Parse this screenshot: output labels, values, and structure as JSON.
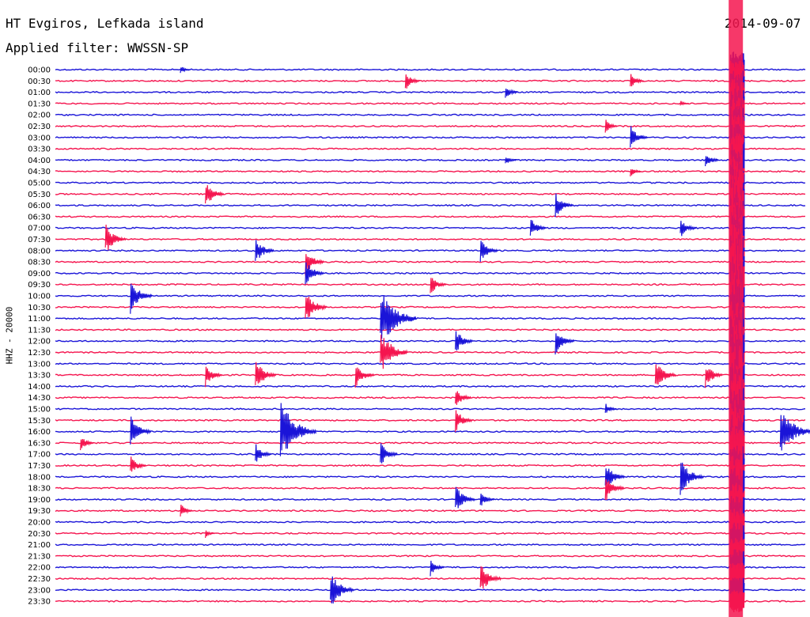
{
  "header": {
    "station": "HT Evgiros, Lefkada island",
    "date": "2014-09-07",
    "filter": "Applied filter: WWSSN-SP",
    "channel_label": "HHZ - 20000"
  },
  "colors": {
    "trace_even": "#1a14d8",
    "trace_odd": "#f5154f",
    "background": "#ffffff"
  },
  "chart_data": {
    "type": "line",
    "subtype": "helicorder",
    "title": "HT Evgiros, Lefkada island",
    "subtitle": "Applied filter: WWSSN-SP",
    "ylabel": "HHZ - 20000",
    "y_tick_labels": [
      "00:00",
      "00:30",
      "01:00",
      "01:30",
      "02:00",
      "02:30",
      "03:00",
      "03:30",
      "04:00",
      "04:30",
      "05:00",
      "05:30",
      "06:00",
      "06:30",
      "07:00",
      "07:30",
      "08:00",
      "08:30",
      "09:00",
      "09:30",
      "10:00",
      "10:30",
      "11:00",
      "11:30",
      "12:00",
      "12:30",
      "13:00",
      "13:30",
      "14:00",
      "14:30",
      "15:00",
      "15:30",
      "16:00",
      "16:30",
      "17:00",
      "17:30",
      "18:00",
      "18:30",
      "19:00",
      "19:30",
      "20:00",
      "20:30",
      "21:00",
      "21:30",
      "22:00",
      "22:30",
      "23:00",
      "23:30"
    ],
    "minutes_per_line": 30,
    "grid": false,
    "series": [
      {
        "colors_alternate": [
          "blue",
          "red"
        ],
        "events": [
          {
            "line": 0,
            "minute": 5,
            "amp": 0.4
          },
          {
            "line": 1,
            "minute": 14,
            "amp": 0.9
          },
          {
            "line": 1,
            "minute": 23,
            "amp": 0.8
          },
          {
            "line": 2,
            "minute": 18,
            "amp": 0.7
          },
          {
            "line": 3,
            "minute": 25,
            "amp": 0.3
          },
          {
            "line": 5,
            "minute": 22,
            "amp": 0.7
          },
          {
            "line": 6,
            "minute": 23,
            "amp": 1.2
          },
          {
            "line": 8,
            "minute": 18,
            "amp": 0.5
          },
          {
            "line": 8,
            "minute": 26,
            "amp": 0.8
          },
          {
            "line": 9,
            "minute": 23,
            "amp": 0.5
          },
          {
            "line": 11,
            "minute": 6,
            "amp": 1.3
          },
          {
            "line": 12,
            "minute": 20,
            "amp": 1.2
          },
          {
            "line": 14,
            "minute": 19,
            "amp": 1.0
          },
          {
            "line": 14,
            "minute": 25,
            "amp": 1.0
          },
          {
            "line": 15,
            "minute": 2,
            "amp": 1.5
          },
          {
            "line": 16,
            "minute": 8,
            "amp": 1.3
          },
          {
            "line": 16,
            "minute": 17,
            "amp": 1.2
          },
          {
            "line": 17,
            "minute": 10,
            "amp": 1.3
          },
          {
            "line": 18,
            "minute": 10,
            "amp": 1.3
          },
          {
            "line": 19,
            "minute": 15,
            "amp": 1.0
          },
          {
            "line": 20,
            "minute": 3,
            "amp": 1.6
          },
          {
            "line": 21,
            "minute": 10,
            "amp": 1.6
          },
          {
            "line": 22,
            "minute": 13,
            "amp": 3.0
          },
          {
            "line": 24,
            "minute": 16,
            "amp": 1.2
          },
          {
            "line": 24,
            "minute": 20,
            "amp": 1.3
          },
          {
            "line": 25,
            "minute": 13,
            "amp": 2.2
          },
          {
            "line": 27,
            "minute": 6,
            "amp": 1.1
          },
          {
            "line": 27,
            "minute": 8,
            "amp": 1.5
          },
          {
            "line": 27,
            "minute": 12,
            "amp": 1.3
          },
          {
            "line": 27,
            "minute": 24,
            "amp": 1.5
          },
          {
            "line": 27,
            "minute": 26,
            "amp": 1.2
          },
          {
            "line": 29,
            "minute": 16,
            "amp": 1.0
          },
          {
            "line": 30,
            "minute": 22,
            "amp": 0.6
          },
          {
            "line": 31,
            "minute": 16,
            "amp": 1.2
          },
          {
            "line": 32,
            "minute": 3,
            "amp": 1.5
          },
          {
            "line": 32,
            "minute": 9,
            "amp": 3.0
          },
          {
            "line": 32,
            "minute": 29,
            "amp": 2.5
          },
          {
            "line": 33,
            "minute": 1,
            "amp": 0.8
          },
          {
            "line": 34,
            "minute": 8,
            "amp": 1.0
          },
          {
            "line": 34,
            "minute": 13,
            "amp": 1.2
          },
          {
            "line": 35,
            "minute": 3,
            "amp": 1.0
          },
          {
            "line": 36,
            "minute": 22,
            "amp": 1.4
          },
          {
            "line": 36,
            "minute": 25,
            "amp": 1.8
          },
          {
            "line": 37,
            "minute": 22,
            "amp": 1.3
          },
          {
            "line": 38,
            "minute": 16,
            "amp": 1.4
          },
          {
            "line": 38,
            "minute": 17,
            "amp": 0.8
          },
          {
            "line": 39,
            "minute": 5,
            "amp": 0.7
          },
          {
            "line": 41,
            "minute": 6,
            "amp": 0.4
          },
          {
            "line": 44,
            "minute": 15,
            "amp": 0.8
          },
          {
            "line": 45,
            "minute": 17,
            "amp": 1.5
          },
          {
            "line": 46,
            "minute": 11,
            "amp": 1.8
          }
        ]
      }
    ],
    "major_event": {
      "line_start": 0,
      "line_end": 47,
      "minute": 27,
      "amp_max": 6.0
    }
  }
}
